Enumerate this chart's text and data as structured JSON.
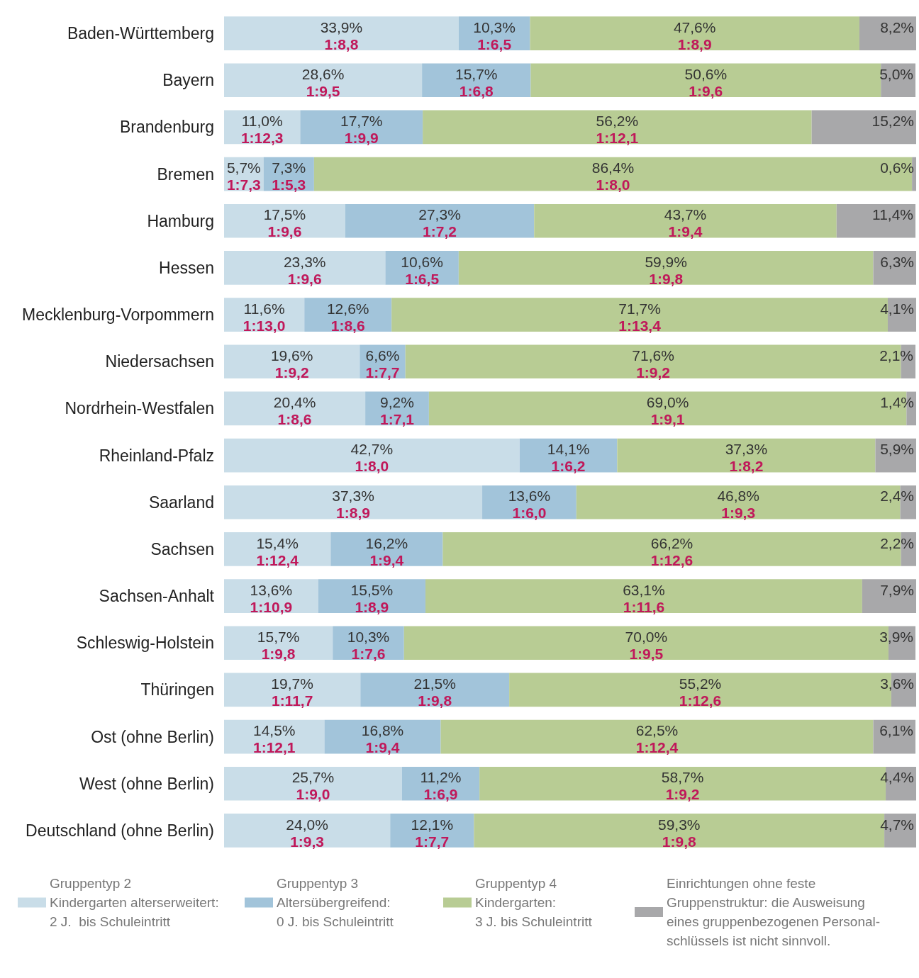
{
  "chart_data": {
    "type": "bar",
    "orientation": "horizontal",
    "stacked": true,
    "tick_labels": "y",
    "xlim": [
      0,
      100
    ],
    "grid": false,
    "legend": "bottom",
    "categories": [
      "Baden-Württemberg",
      "Bayern",
      "Brandenburg",
      "Bremen",
      "Hamburg",
      "Hessen",
      "Mecklenburg-Vorpommern",
      "Niedersachsen",
      "Nordrhein-Westfalen",
      "Rheinland-Pfalz",
      "Saarland",
      "Sachsen",
      "Sachsen-Anhalt",
      "Schleswig-Holstein",
      "Thüringen",
      "Ost (ohne Berlin)",
      "West (ohne Berlin)",
      "Deutschland (ohne Berlin)"
    ],
    "series": [
      {
        "name": "Gruppentyp 2\nKindergarten alterserweitert:\n2 J.  bis Schuleintritt",
        "color": "#c9dde8",
        "values": [
          33.9,
          28.6,
          11.0,
          5.7,
          17.5,
          23.3,
          11.6,
          19.6,
          20.4,
          42.7,
          37.3,
          15.4,
          13.6,
          15.7,
          19.7,
          14.5,
          25.7,
          24.0
        ],
        "value_labels": [
          "33,9%\n1:8,8",
          "28,6%\n1:9,5",
          "11,0%\n1:12,3",
          "5,7%\n1:7,3",
          "17,5%\n1:9,6",
          "23,3%\n1:9,6",
          "11,6%\n1:13,0",
          "19,6%\n1:9,2",
          "20,4%\n1:8,6",
          "42,7%\n1:8,0",
          "37,3%\n1:8,9",
          "15,4%\n1:12,4",
          "13,6%\n1:10,9",
          "15,7%\n1:9,8",
          "19,7%\n1:11,7",
          "14,5%\n1:12,1",
          "25,7%\n1:9,0",
          "24,0%\n1:9,3"
        ]
      },
      {
        "name": "Gruppentyp 3\nAltersübergreifend:\n0 J. bis Schuleintritt",
        "color": "#a2c4da",
        "values": [
          10.3,
          15.7,
          17.7,
          7.3,
          27.3,
          10.6,
          12.6,
          6.6,
          9.2,
          14.1,
          13.6,
          16.2,
          15.5,
          10.3,
          21.5,
          16.8,
          11.2,
          12.1
        ],
        "value_labels": [
          "10,3%\n1:6,5",
          "15,7%\n1:6,8",
          "17,7%\n1:9,9",
          "7,3%\n1:5,3",
          "27,3%\n1:7,2",
          "10,6%\n1:6,5",
          "12,6%\n1:8,6",
          "6,6%\n1:7,7",
          "9,2%\n1:7,1",
          "14,1%\n1:6,2",
          "13,6%\n1:6,0",
          "16,2%\n1:9,4",
          "15,5%\n1:8,9",
          "10,3%\n1:7,6",
          "21,5%\n1:9,8",
          "16,8%\n1:9,4",
          "11,2%\n1:6,9",
          "12,1%\n1:7,7"
        ]
      },
      {
        "name": "Gruppentyp 4\nKindergarten:\n3 J. bis Schuleintritt",
        "color": "#b8cc94",
        "values": [
          47.6,
          50.6,
          56.2,
          86.4,
          43.7,
          59.9,
          71.7,
          71.6,
          69.0,
          37.3,
          46.8,
          66.2,
          63.1,
          70.0,
          55.2,
          62.5,
          58.7,
          59.3
        ],
        "value_labels": [
          "47,6%\n1:8,9",
          "50,6%\n1:9,6",
          "56,2%\n1:12,1",
          "86,4%\n1:8,0",
          "43,7%\n1:9,4",
          "59,9%\n1:9,8",
          "71,7%\n1:13,4",
          "71,6%\n1:9,2",
          "69,0%\n1:9,1",
          "37,3%\n1:8,2",
          "46,8%\n1:9,3",
          "66,2%\n1:12,6",
          "63,1%\n1:11,6",
          "70,0%\n1:9,5",
          "55,2%\n1:12,6",
          "62,5%\n1:12,4",
          "58,7%\n1:9,2",
          "59,3%\n1:9,8"
        ]
      },
      {
        "name": "Einrichtungen ohne feste\nGruppenstruktur: die Ausweisung\neines gruppenbezogenen Personal-\nschlüssels ist nicht sinnvoll.",
        "color": "#a8a8aa",
        "values": [
          8.2,
          5.0,
          15.2,
          0.6,
          11.4,
          6.3,
          4.1,
          2.1,
          1.4,
          5.9,
          2.4,
          2.2,
          7.9,
          3.9,
          3.6,
          6.1,
          4.4,
          4.7
        ],
        "value_labels": [
          "8,2%",
          "5,0%",
          "15,2%",
          "0,6%",
          "11,4%",
          "6,3%",
          "4,1%",
          "2,1%",
          "1,4%",
          "5,9%",
          "2,4%",
          "2,2%",
          "7,9%",
          "3,9%",
          "3,6%",
          "6,1%",
          "4,4%",
          "4,7%"
        ]
      }
    ]
  }
}
